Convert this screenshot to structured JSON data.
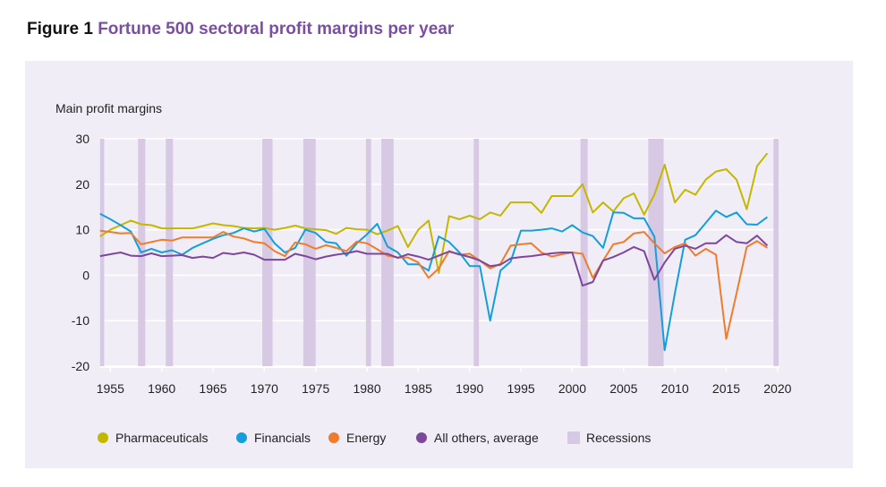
{
  "figure": {
    "label": "Figure 1",
    "title": "Fortune 500 sectoral profit margins per year"
  },
  "chart_data": {
    "type": "line",
    "title": "Fortune 500 sectoral profit margins per year",
    "ylabel": "Main profit margins",
    "xlabel": "",
    "xlim": [
      1954,
      2020
    ],
    "ylim": [
      -20,
      30
    ],
    "yticks": [
      30,
      20,
      10,
      0,
      -10,
      -20
    ],
    "xticks": [
      1955,
      1960,
      1965,
      1970,
      1975,
      1980,
      1985,
      1990,
      1995,
      2000,
      2005,
      2010,
      2015,
      2020
    ],
    "grid": true,
    "legend_position": "bottom",
    "x_start": 1954,
    "series": [
      {
        "name": "Pharmaceuticals",
        "color": "#c4b700",
        "values": [
          8.5,
          10,
          11,
          12,
          11.2,
          11,
          10.3,
          10.3,
          10.3,
          10.3,
          10.8,
          11.4,
          11,
          10.8,
          10.4,
          10.3,
          10.4,
          10,
          10.4,
          10.9,
          10.3,
          10.1,
          9.9,
          9.1,
          10.4,
          10.1,
          10,
          9,
          9.8,
          10.8,
          6.2,
          10,
          12,
          0.5,
          13,
          12.3,
          13.1,
          12.3,
          13.8,
          13.1,
          16,
          16,
          16,
          13.7,
          17.4,
          17.4,
          17.4,
          20,
          13.8,
          16,
          14,
          16.9,
          18,
          13.3,
          17.7,
          24.3,
          16,
          18.8,
          17.7,
          21,
          22.8,
          23.3,
          21,
          14.5,
          24,
          26.8
        ]
      },
      {
        "name": "Financials",
        "color": "#129fdb",
        "values": [
          13.5,
          12.3,
          11,
          9.6,
          5,
          5.8,
          5,
          5.5,
          4.5,
          6,
          7,
          8,
          8.8,
          9.3,
          10.3,
          9.6,
          10.2,
          7,
          5,
          6,
          10,
          9.3,
          7.3,
          7,
          4.3,
          7,
          9,
          11.3,
          6.3,
          5,
          2.4,
          2.4,
          1,
          8.5,
          7.3,
          5,
          2,
          2,
          -10,
          1,
          3,
          9.8,
          9.8,
          10,
          10.3,
          9.6,
          11,
          9.4,
          8.6,
          6,
          13.8,
          13.7,
          12.5,
          12.5,
          8.5,
          -16.5,
          -4,
          7.8,
          8.8,
          11.5,
          14.2,
          12.8,
          13.8,
          11.2,
          11.1,
          12.8
        ]
      },
      {
        "name": "Energy",
        "color": "#f07c2b",
        "values": [
          9.8,
          9.5,
          9.2,
          9.3,
          6.8,
          7.3,
          7.8,
          7.6,
          8.3,
          8.3,
          8.3,
          8.3,
          9.5,
          8.5,
          8.1,
          7.3,
          7,
          5.3,
          4.2,
          7.2,
          6.8,
          5.8,
          6.6,
          6,
          5.3,
          7.4,
          7,
          5.7,
          4.3,
          3.9,
          3.9,
          2.8,
          -0.6,
          1.5,
          5.3,
          4.5,
          4.7,
          3.2,
          1.5,
          2.5,
          6.5,
          6.8,
          7,
          5,
          4.1,
          4.6,
          5,
          4.7,
          -0.6,
          3.2,
          6.8,
          7.3,
          9.2,
          9.5,
          7,
          4.8,
          6.2,
          7,
          4.3,
          5.8,
          4.5,
          -14,
          -4,
          6.2,
          7.5,
          6
        ]
      },
      {
        "name": "All others, average",
        "color": "#7d479c",
        "values": [
          4.2,
          4.6,
          5,
          4.3,
          4.2,
          4.8,
          4.2,
          4.3,
          4.4,
          3.8,
          4.1,
          3.8,
          4.9,
          4.6,
          5,
          4.5,
          3.4,
          3.4,
          3.4,
          4.7,
          4.2,
          3.5,
          4.1,
          4.5,
          4.8,
          5.3,
          4.7,
          4.7,
          4.7,
          3.8,
          4.6,
          4.1,
          3.4,
          4.3,
          5.2,
          4.6,
          4,
          3.2,
          2,
          2.3,
          3.7,
          4,
          4.2,
          4.5,
          4.8,
          5,
          5,
          -2.3,
          -1.5,
          3.2,
          4,
          5,
          6.2,
          5.3,
          -1,
          2.8,
          5.8,
          6.5,
          5.8,
          7,
          7,
          8.8,
          7.3,
          7,
          8.7,
          6.5
        ]
      }
    ],
    "recessions": {
      "name": "Recessions",
      "color": "#d7c9e4",
      "periods": [
        [
          1954.0,
          1954.4
        ],
        [
          1957.7,
          1958.4
        ],
        [
          1960.4,
          1961.1
        ],
        [
          1969.8,
          1970.8
        ],
        [
          1973.8,
          1975.0
        ],
        [
          1979.9,
          1980.4
        ],
        [
          1981.4,
          1982.6
        ],
        [
          1990.4,
          1990.9
        ],
        [
          2000.8,
          2001.5
        ],
        [
          2007.4,
          2008.9
        ],
        [
          2019.6,
          2020.1
        ]
      ]
    }
  }
}
